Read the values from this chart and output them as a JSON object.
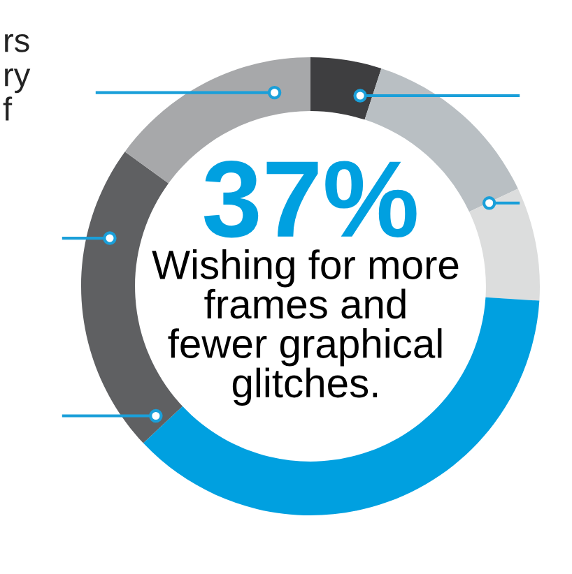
{
  "chart_data": {
    "type": "donut",
    "categories": [
      null,
      null,
      null,
      null,
      null,
      null
    ],
    "values": [
      5,
      13,
      8,
      37,
      22,
      15
    ],
    "colors": [
      "#3e3e40",
      "#b9bfc3",
      "#dcdddd",
      "#00a0e0",
      "#5f6062",
      "#a7a8aa"
    ],
    "annotations": [
      "37%",
      "Wishing for more\nframes and\nfewer graphical\nglitches.",
      "rs\nry\nf"
    ],
    "legend": false
  }
}
